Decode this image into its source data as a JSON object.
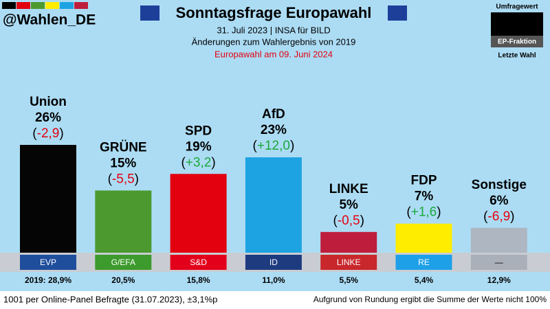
{
  "header": {
    "handle": "@Wahlen_DE",
    "legend": {
      "value": "Umfragewert",
      "faction": "EP-Fraktion",
      "last": "Letzte Wahl"
    }
  },
  "chart_data": {
    "type": "bar",
    "title": "Sonntagsfrage Europawahl",
    "subtitle": "31. Juli 2023 | INSA für BILD",
    "note": "Änderungen zum Wahlergebnis von 2019",
    "election": "Europawahl am 09. Juni 2024",
    "categories": [
      "Union",
      "GRÜNE",
      "SPD",
      "AfD",
      "LINKE",
      "FDP",
      "Sonstige"
    ],
    "values": [
      26,
      15,
      19,
      23,
      5,
      7,
      6
    ],
    "value_labels": [
      "26%",
      "15%",
      "19%",
      "23%",
      "5%",
      "7%",
      "6%"
    ],
    "colors": [
      "#050505",
      "#4c9a2f",
      "#e3000f",
      "#1ea3e2",
      "#be1e3c",
      "#ffed00",
      "#aeb6c2"
    ],
    "changes": [
      "(-2,9)",
      "(-5,5)",
      "(+3,2)",
      "(+12,0)",
      "(-0,5)",
      "(+1,6)",
      "(-6,9)"
    ],
    "factions": [
      "EVP",
      "G/EFA",
      "S&D",
      "ID",
      "LINKE",
      "RE",
      "—"
    ],
    "faction_colors": [
      "#1f4e9c",
      "#3d9a2c",
      "#e3001b",
      "#1e3b80",
      "#c8282c",
      "#1ea0e8",
      "#aab0ba"
    ],
    "previous": [
      "2019: 28,9%",
      "20,5%",
      "15,8%",
      "11,0%",
      "5,5%",
      "5,4%",
      "12,9%"
    ],
    "ylim": [
      0,
      26
    ]
  },
  "footer": {
    "left": "1001 per Online-Panel Befragte (31.07.2023), ±3,1%p",
    "right": "Aufgrund von Rundung ergibt die Summe der Werte nicht 100%"
  }
}
